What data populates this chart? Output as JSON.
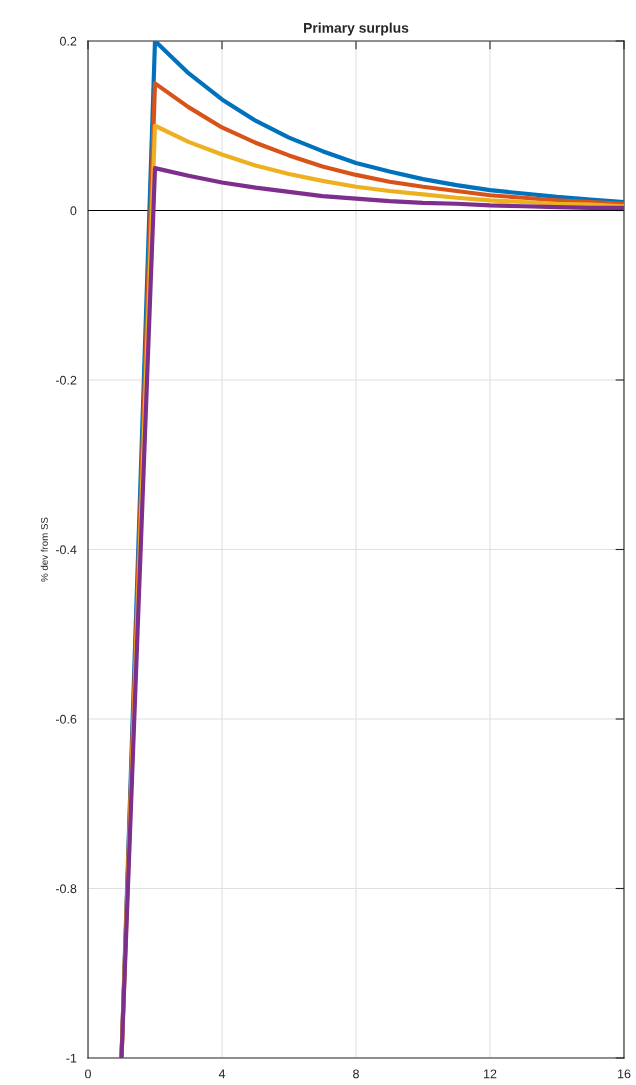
{
  "chart_data": {
    "type": "line",
    "title": "Primary surplus",
    "ylabel": "% dev from SS",
    "x": [
      1,
      2,
      3,
      4,
      5,
      6,
      7,
      8,
      9,
      10,
      11,
      12,
      13,
      14,
      15,
      16
    ],
    "series": [
      {
        "color": "#0072bd",
        "values": [
          -1,
          0.2,
          0.162,
          0.131,
          0.106,
          0.086,
          0.07,
          0.056,
          0.046,
          0.037,
          0.03,
          0.024,
          0.02,
          0.016,
          0.013,
          0.01
        ]
      },
      {
        "color": "#d95319",
        "values": [
          -1,
          0.15,
          0.122,
          0.098,
          0.08,
          0.065,
          0.052,
          0.042,
          0.034,
          0.028,
          0.023,
          0.018,
          0.015,
          0.012,
          0.01,
          0.008
        ]
      },
      {
        "color": "#edb120",
        "values": [
          -1,
          0.1,
          0.081,
          0.066,
          0.053,
          0.043,
          0.035,
          0.028,
          0.023,
          0.019,
          0.015,
          0.012,
          0.01,
          0.008,
          0.007,
          0.005
        ]
      },
      {
        "color": "#7e2f8e",
        "values": [
          -1,
          0.05,
          0.041,
          0.033,
          0.027,
          0.022,
          0.017,
          0.014,
          0.011,
          0.009,
          0.008,
          0.006,
          0.005,
          0.004,
          0.003,
          0.003
        ]
      }
    ],
    "xlim": [
      0,
      16
    ],
    "xticks": [
      0,
      4,
      8,
      12,
      16
    ],
    "ylim": [
      -1,
      0.2
    ],
    "yticks": [
      -1,
      -0.8,
      -0.6,
      -0.4,
      -0.2,
      0,
      0.2
    ],
    "ref_lines": [
      {
        "axis": "y",
        "value": 0,
        "color": "#000000"
      }
    ],
    "grid": true,
    "marker": "none",
    "line_style": "solid"
  }
}
